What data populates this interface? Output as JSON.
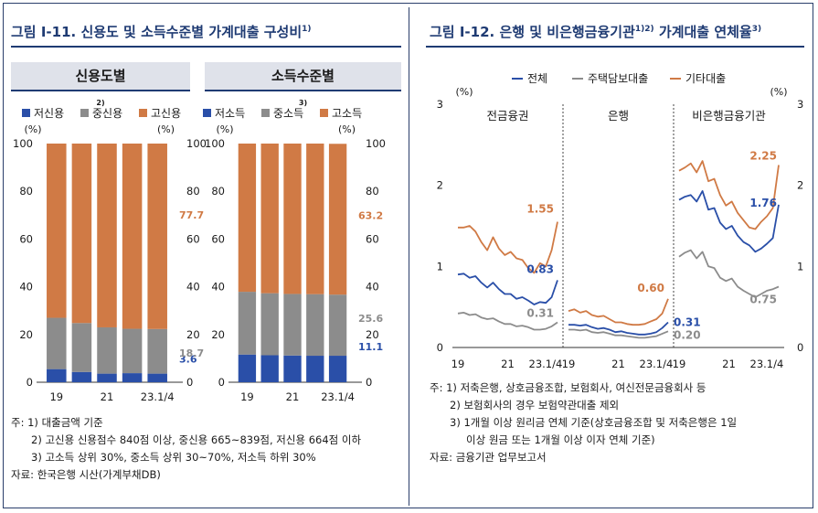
{
  "colors": {
    "navy": "#1f3b73",
    "low": "#2a4fa8",
    "mid": "#8c8c8c",
    "high": "#d07a45",
    "total": "#2a4fa8",
    "mortgage": "#8c8c8c",
    "other": "#d07a45"
  },
  "left": {
    "title_prefix": "그림 Ⅰ-11.",
    "title_text": "신용도 및 소득수준별 가계대출 구성비",
    "title_sup": "1)",
    "sub1": "신용도별",
    "sub1_sup": "2)",
    "sub2": "소득수준별",
    "sub2_sup": "3)",
    "notes": [
      "주: 1) 대출금액 기준",
      "2) 고신용 신용점수 840점 이상, 중신용 665~839점, 저신용 664점 이하",
      "3) 고소득 상위 30%, 중소득 상위 30~70%, 저소득 하위 30%",
      "자료: 한국은행 시산(가계부채DB)"
    ]
  },
  "right": {
    "title_prefix": "그림 Ⅰ-12.",
    "title_text": "은행 및 비은행금융기관",
    "title_sup1": "1)2)",
    "title_text2": "가계대출 연체율",
    "title_sup2": "3)",
    "notes": [
      "주: 1) 저축은행, 상호금융조합, 보험회사, 여신전문금융회사 등",
      "2) 보험회사의 경우 보험약관대출 제외",
      "3) 1개월 이상 원리금 연체 기준(상호금융조합 및 저축은행은 1일",
      "이상 원금 또는 1개월 이상 이자 연체 기준)",
      "자료: 금융기관 업무보고서"
    ]
  },
  "chart_data": [
    {
      "type": "bar",
      "stacked": true,
      "id": "credit",
      "title": "신용도별",
      "unit_left": "(%)",
      "unit_right": "(%)",
      "ylim": [
        0,
        100
      ],
      "yticks": [
        0,
        20,
        40,
        60,
        80,
        100
      ],
      "categories": [
        "19",
        "20",
        "21",
        "22",
        "23.1/4"
      ],
      "xtick_labels": [
        "19",
        "21",
        "23.1/4"
      ],
      "series": [
        {
          "name": "저신용",
          "color": "#2a4fa8",
          "values": [
            5.5,
            4.3,
            3.6,
            3.8,
            3.6
          ]
        },
        {
          "name": "중신용",
          "color": "#8c8c8c",
          "values": [
            21.5,
            20.5,
            19.4,
            18.6,
            18.7
          ]
        },
        {
          "name": "고신용",
          "color": "#d07a45",
          "values": [
            73.0,
            75.2,
            77.0,
            77.6,
            77.7
          ]
        }
      ],
      "end_labels": [
        "3.6",
        "18.7",
        "77.7"
      ]
    },
    {
      "type": "bar",
      "stacked": true,
      "id": "income",
      "title": "소득수준별",
      "unit_left": "(%)",
      "unit_right": "(%)",
      "ylim": [
        0,
        100
      ],
      "yticks": [
        0,
        20,
        40,
        60,
        80,
        100
      ],
      "categories": [
        "19",
        "20",
        "21",
        "22",
        "23.1/4"
      ],
      "xtick_labels": [
        "19",
        "21",
        "23.1/4"
      ],
      "series": [
        {
          "name": "저소득",
          "color": "#2a4fa8",
          "values": [
            11.6,
            11.3,
            11.2,
            11.1,
            11.1
          ]
        },
        {
          "name": "중소득",
          "color": "#8c8c8c",
          "values": [
            26.3,
            26.0,
            25.8,
            25.8,
            25.6
          ]
        },
        {
          "name": "고소득",
          "color": "#d07a45",
          "values": [
            62.1,
            62.7,
            63.0,
            63.1,
            63.2
          ]
        }
      ],
      "end_labels": [
        "11.1",
        "25.6",
        "63.2"
      ]
    },
    {
      "type": "line",
      "id": "delinquency",
      "title": "가계대출 연체율",
      "unit": "(%)",
      "ylim": [
        0,
        3
      ],
      "yticks": [
        0,
        1,
        2,
        3
      ],
      "panels": [
        "전금융권",
        "은행",
        "비은행금융기관"
      ],
      "xtick_labels": [
        "19",
        "21",
        "23.1/4"
      ],
      "series_names": [
        "전체",
        "주택담보대출",
        "기타대출"
      ],
      "data": [
        {
          "panel": "전금융권",
          "total": [
            0.9,
            0.91,
            0.86,
            0.88,
            0.8,
            0.74,
            0.8,
            0.72,
            0.66,
            0.66,
            0.6,
            0.62,
            0.58,
            0.53,
            0.56,
            0.55,
            0.62,
            0.83
          ],
          "mortgage": [
            0.42,
            0.43,
            0.4,
            0.41,
            0.37,
            0.35,
            0.36,
            0.32,
            0.29,
            0.29,
            0.26,
            0.27,
            0.25,
            0.22,
            0.22,
            0.23,
            0.26,
            0.31
          ],
          "other": [
            1.48,
            1.48,
            1.5,
            1.43,
            1.3,
            1.2,
            1.36,
            1.22,
            1.14,
            1.18,
            1.1,
            1.08,
            0.98,
            0.92,
            1.04,
            1.0,
            1.2,
            1.55
          ],
          "labels": {
            "total": "0.83",
            "mortgage": "0.31",
            "other": "1.55"
          }
        },
        {
          "panel": "은행",
          "total": [
            0.28,
            0.28,
            0.27,
            0.28,
            0.25,
            0.23,
            0.24,
            0.22,
            0.19,
            0.2,
            0.18,
            0.17,
            0.16,
            0.16,
            0.17,
            0.19,
            0.24,
            0.31
          ],
          "mortgage": [
            0.22,
            0.22,
            0.21,
            0.22,
            0.19,
            0.18,
            0.19,
            0.17,
            0.15,
            0.15,
            0.14,
            0.13,
            0.12,
            0.12,
            0.13,
            0.14,
            0.17,
            0.2
          ],
          "other": [
            0.45,
            0.47,
            0.43,
            0.45,
            0.4,
            0.38,
            0.39,
            0.35,
            0.31,
            0.31,
            0.29,
            0.28,
            0.28,
            0.29,
            0.32,
            0.35,
            0.42,
            0.6
          ],
          "labels": {
            "total": "0.31",
            "mortgage": "0.20",
            "other": "0.60"
          }
        },
        {
          "panel": "비은행금융기관",
          "total": [
            1.82,
            1.86,
            1.88,
            1.8,
            1.93,
            1.7,
            1.72,
            1.54,
            1.46,
            1.5,
            1.38,
            1.3,
            1.26,
            1.18,
            1.22,
            1.28,
            1.35,
            1.76
          ],
          "mortgage": [
            1.12,
            1.17,
            1.2,
            1.1,
            1.18,
            1.0,
            0.98,
            0.86,
            0.82,
            0.85,
            0.75,
            0.7,
            0.66,
            0.62,
            0.66,
            0.7,
            0.72,
            0.75
          ],
          "other": [
            2.18,
            2.22,
            2.27,
            2.16,
            2.3,
            2.05,
            2.08,
            1.88,
            1.75,
            1.8,
            1.66,
            1.57,
            1.48,
            1.46,
            1.55,
            1.62,
            1.72,
            2.25
          ],
          "labels": {
            "total": "1.76",
            "mortgage": "0.75",
            "other": "2.25"
          }
        }
      ]
    }
  ]
}
